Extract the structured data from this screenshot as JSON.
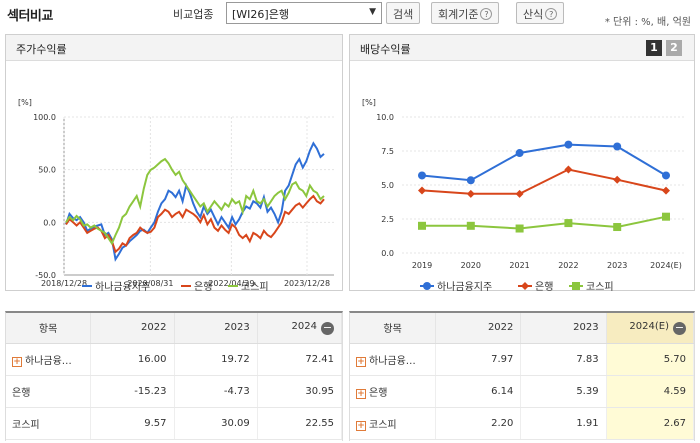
{
  "title": "섹터비교",
  "filter": {
    "label": "비교업종",
    "selected": "[WI26]은행",
    "search_label": "검색",
    "standard_label": "회계기준",
    "formula_label": "산식",
    "help_glyph": "?",
    "unit": "* 단위 : %, 배, 억원"
  },
  "left_panel": {
    "title": "주가수익률",
    "chart_data": {
      "type": "line",
      "title": "주가수익률",
      "ylabel": "[%]",
      "ylim": [
        -50,
        100
      ],
      "yticks": [
        "100.0",
        "50.0",
        "0.0",
        "-50.0"
      ],
      "xticks": [
        "2018/12/28",
        "2020/08/31",
        "2022/04/29",
        "2023/12/28"
      ],
      "series": [
        {
          "name": "하나금융지주",
          "color": "#2f6fd6",
          "values": [
            -2,
            8,
            4,
            2,
            5,
            0,
            -8,
            -6,
            -4,
            -3,
            -2,
            -12,
            -10,
            -16,
            -35,
            -30,
            -24,
            -22,
            -18,
            -15,
            -12,
            -8,
            -7,
            -10,
            -5,
            0,
            10,
            18,
            22,
            30,
            28,
            24,
            30,
            20,
            35,
            28,
            18,
            10,
            5,
            15,
            8,
            12,
            5,
            -2,
            5,
            0,
            -5,
            5,
            -2,
            3,
            10,
            15,
            13,
            20,
            18,
            14,
            24,
            10,
            14,
            8,
            0,
            10,
            30,
            35,
            45,
            55,
            60,
            52,
            58,
            68,
            75,
            70,
            62,
            65
          ]
        },
        {
          "name": "은행",
          "color": "#d8461b",
          "values": [
            -2,
            3,
            0,
            -3,
            0,
            -5,
            -10,
            -8,
            -6,
            -5,
            -8,
            -15,
            -12,
            -18,
            -28,
            -25,
            -20,
            -22,
            -15,
            -12,
            -10,
            -5,
            -8,
            -10,
            -9,
            -5,
            5,
            8,
            12,
            10,
            5,
            8,
            10,
            5,
            12,
            10,
            8,
            5,
            0,
            7,
            -2,
            3,
            -5,
            -8,
            -3,
            -7,
            -10,
            -2,
            -5,
            -12,
            -15,
            -12,
            -18,
            -10,
            -12,
            -15,
            -8,
            -12,
            -14,
            -10,
            -5,
            0,
            10,
            8,
            12,
            16,
            18,
            14,
            18,
            22,
            25,
            20,
            18,
            22
          ]
        },
        {
          "name": "코스피",
          "color": "#8cc63e",
          "values": [
            0,
            5,
            2,
            6,
            3,
            -3,
            -2,
            -5,
            -3,
            -6,
            -8,
            -10,
            -15,
            -20,
            -12,
            -5,
            5,
            8,
            15,
            20,
            25,
            15,
            32,
            45,
            50,
            52,
            55,
            58,
            60,
            56,
            50,
            45,
            48,
            40,
            35,
            30,
            25,
            20,
            15,
            18,
            10,
            15,
            20,
            16,
            12,
            18,
            15,
            22,
            18,
            20,
            10,
            25,
            22,
            30,
            20,
            18,
            22,
            15,
            20,
            25,
            28,
            30,
            22,
            28,
            36,
            38,
            32,
            30,
            25,
            35,
            30,
            28,
            22,
            25
          ]
        }
      ]
    },
    "legend": [
      "하나금융지주",
      "은행",
      "코스피"
    ]
  },
  "right_panel": {
    "title": "배당수익률",
    "page_buttons": [
      "1",
      "2"
    ],
    "chart_data": {
      "type": "line",
      "title": "배당수익률",
      "ylabel": "[%]",
      "ylim": [
        0,
        10
      ],
      "yticks": [
        "10.0",
        "7.5",
        "5.0",
        "2.5",
        "0.0"
      ],
      "categories": [
        "2019",
        "2020",
        "2021",
        "2022",
        "2023",
        "2024(E)"
      ],
      "series": [
        {
          "name": "하나금융지주",
          "color": "#2f6fd6",
          "marker": "circle",
          "values": [
            5.7,
            5.35,
            7.35,
            7.97,
            7.83,
            5.7
          ]
        },
        {
          "name": "은행",
          "color": "#d8461b",
          "marker": "diamond",
          "values": [
            4.6,
            4.35,
            4.35,
            6.14,
            5.39,
            4.59
          ]
        },
        {
          "name": "코스피",
          "color": "#8cc63e",
          "marker": "square",
          "values": [
            2.0,
            2.0,
            1.8,
            2.2,
            1.91,
            2.67
          ]
        }
      ]
    },
    "legend": [
      "하나금융지주",
      "은행",
      "코스피"
    ]
  },
  "left_table": {
    "headers": [
      "항목",
      "2022",
      "2023",
      "2024"
    ],
    "collapse_glyph": "−",
    "rows": [
      {
        "name": "하나금융…",
        "expandable": true,
        "values": [
          "16.00",
          "19.72",
          "72.41"
        ]
      },
      {
        "name": "은행",
        "expandable": false,
        "values": [
          "-15.23",
          "-4.73",
          "30.95"
        ]
      },
      {
        "name": "코스피",
        "expandable": false,
        "values": [
          "9.57",
          "30.09",
          "22.55"
        ]
      }
    ]
  },
  "right_table": {
    "headers": [
      "항목",
      "2022",
      "2023",
      "2024(E)"
    ],
    "collapse_glyph": "−",
    "rows": [
      {
        "name": "하나금융…",
        "expandable": true,
        "values": [
          "7.97",
          "7.83",
          "5.70"
        ]
      },
      {
        "name": "은행",
        "expandable": true,
        "values": [
          "6.14",
          "5.39",
          "4.59"
        ]
      },
      {
        "name": "코스피",
        "expandable": true,
        "values": [
          "2.20",
          "1.91",
          "2.67"
        ]
      }
    ]
  },
  "colors": {
    "blue": "#2f6fd6",
    "red": "#d8461b",
    "green": "#8cc63e",
    "highlight": "#fffbd6"
  }
}
